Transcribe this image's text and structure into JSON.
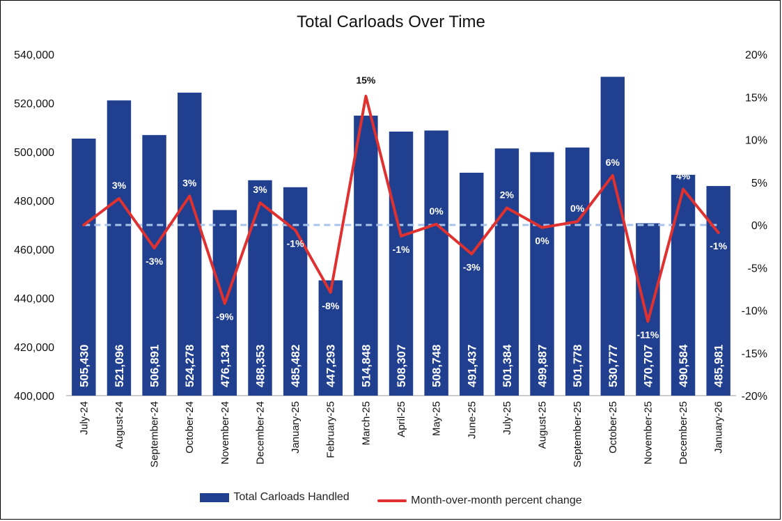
{
  "colors": {
    "bar": "#203f8f",
    "line": "#e03131",
    "zero_line": "#a9c4ea"
  },
  "chart_data": {
    "type": "bar",
    "title": "Total Carloads Over Time",
    "categories": [
      "July-24",
      "August-24",
      "September-24",
      "October-24",
      "November-24",
      "December-24",
      "January-25",
      "February-25",
      "March-25",
      "April-25",
      "May-25",
      "June-25",
      "July-25",
      "August-25",
      "September-25",
      "October-25",
      "November-25",
      "December-25",
      "January-26"
    ],
    "series": [
      {
        "name": "Total Carloads Handled",
        "type": "bar",
        "axis": "left",
        "values": [
          505430,
          521096,
          506891,
          524278,
          476134,
          488353,
          485482,
          447293,
          514848,
          508307,
          508748,
          491437,
          501384,
          499887,
          501778,
          530777,
          470707,
          490584,
          485981
        ],
        "labels": [
          "505,430",
          "521,096",
          "506,891",
          "524,278",
          "476,134",
          "488,353",
          "485,482",
          "447,293",
          "514,848",
          "508,307",
          "508,748",
          "491,437",
          "501,384",
          "499,887",
          "501,778",
          "530,777",
          "470,707",
          "490,584",
          "485,981"
        ]
      },
      {
        "name": "Month-over-month percent change",
        "type": "line",
        "axis": "right",
        "values": [
          0,
          3.1,
          -2.7,
          3.4,
          -9.2,
          2.6,
          -0.6,
          -7.9,
          15.1,
          -1.3,
          0.1,
          -3.4,
          2.0,
          -0.3,
          0.4,
          5.8,
          -11.3,
          4.2,
          -0.9
        ],
        "labels": [
          "",
          "3%",
          "-3%",
          "3%",
          "-9%",
          "3%",
          "-1%",
          "-8%",
          "15%",
          "-1%",
          "0%",
          "-3%",
          "2%",
          "0%",
          "0%",
          "6%",
          "-11%",
          "4%",
          "-1%"
        ]
      }
    ],
    "y_left": {
      "min": 400000,
      "max": 540000,
      "ticks": [
        "400,000",
        "420,000",
        "440,000",
        "460,000",
        "480,000",
        "500,000",
        "520,000",
        "540,000"
      ]
    },
    "y_right": {
      "min": -20,
      "max": 20,
      "ticks": [
        "-20%",
        "-15%",
        "-10%",
        "-5%",
        "0%",
        "5%",
        "10%",
        "15%",
        "20%"
      ]
    },
    "reference_line": {
      "value": 0,
      "axis": "right",
      "style": "dashed"
    },
    "grid": false,
    "legend_position": "bottom"
  }
}
